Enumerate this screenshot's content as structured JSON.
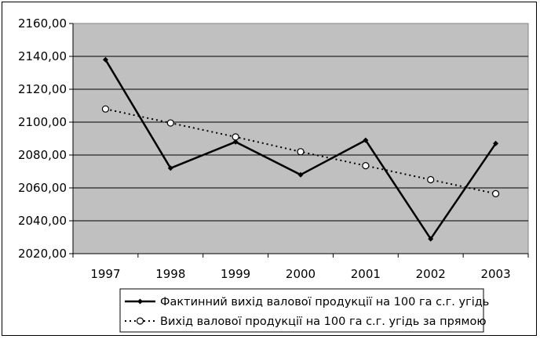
{
  "chart_data": {
    "type": "line",
    "categories": [
      "1997",
      "1998",
      "1999",
      "2000",
      "2001",
      "2002",
      "2003"
    ],
    "y_ticks": [
      "2020,00",
      "2040,00",
      "2060,00",
      "2080,00",
      "2100,00",
      "2120,00",
      "2140,00",
      "2160,00"
    ],
    "ylim": [
      2020,
      2160
    ],
    "grid": true,
    "plot_background": "#c0c0c0",
    "series": [
      {
        "name": "Фактинний вихід валової продукції на 100 га с.г. угідь",
        "style": "solid-line-diamond",
        "color": "#000000",
        "values": [
          2138,
          2072,
          2088,
          2068,
          2089,
          2029,
          2087
        ]
      },
      {
        "name": "Вихід валової продукції на 100 га с.г. угідь за прямою",
        "style": "dotted-line-open-circle",
        "color": "#000000",
        "values": [
          2108,
          2099.5,
          2091,
          2082,
          2073.5,
          2065,
          2056.5
        ]
      }
    ],
    "legend_position": "bottom"
  }
}
